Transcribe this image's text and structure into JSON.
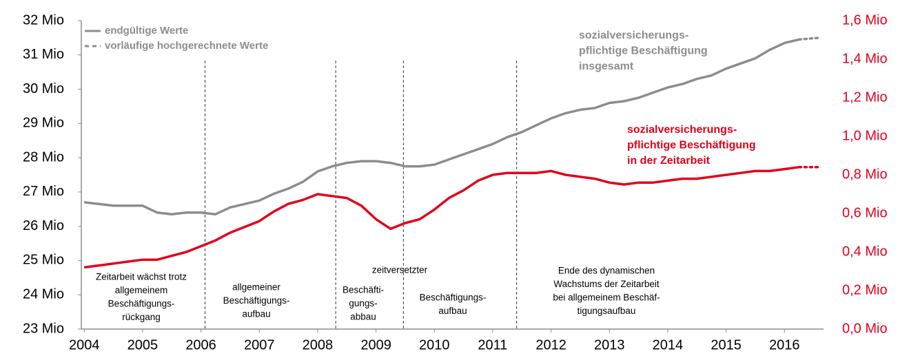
{
  "chart_data": {
    "type": "line",
    "legend": [
      {
        "name": "endgültige Werte",
        "dashed": false
      },
      {
        "name": "vorläufige hochgerechnete Werte",
        "dashed": true
      }
    ],
    "legend_color": "#8c8c8c",
    "x": [
      2004,
      2004.25,
      2004.5,
      2004.75,
      2005,
      2005.25,
      2005.5,
      2005.75,
      2006,
      2006.25,
      2006.5,
      2006.75,
      2007,
      2007.25,
      2007.5,
      2007.75,
      2008,
      2008.25,
      2008.5,
      2008.75,
      2009,
      2009.25,
      2009.5,
      2009.75,
      2010,
      2010.25,
      2010.5,
      2010.75,
      2011,
      2011.25,
      2011.5,
      2011.75,
      2012,
      2012.25,
      2012.5,
      2012.75,
      2013,
      2013.25,
      2013.5,
      2013.75,
      2014,
      2014.25,
      2014.5,
      2014.75,
      2015,
      2015.25,
      2015.5,
      2015.75,
      2016,
      2016.25
    ],
    "series": [
      {
        "color": "#8c8c8c",
        "axis": "y",
        "dashed": false,
        "values": [
          26.7,
          26.65,
          26.6,
          26.6,
          26.6,
          26.4,
          26.35,
          26.4,
          26.4,
          26.35,
          26.55,
          26.65,
          26.75,
          26.95,
          27.1,
          27.3,
          27.6,
          27.75,
          27.85,
          27.9,
          27.9,
          27.85,
          27.75,
          27.75,
          27.8,
          27.95,
          28.1,
          28.25,
          28.4,
          28.6,
          28.75,
          28.95,
          29.15,
          29.3,
          29.4,
          29.45,
          29.6,
          29.65,
          29.75,
          29.9,
          30.05,
          30.15,
          30.3,
          30.4,
          30.6,
          30.75,
          30.9,
          31.15,
          31.35,
          31.45
        ]
      },
      {
        "color": "#e2001a",
        "axis": "y2",
        "dashed": false,
        "values": [
          0.32,
          0.33,
          0.34,
          0.35,
          0.36,
          0.36,
          0.38,
          0.4,
          0.43,
          0.46,
          0.5,
          0.53,
          0.56,
          0.61,
          0.65,
          0.67,
          0.7,
          0.69,
          0.68,
          0.64,
          0.57,
          0.52,
          0.55,
          0.57,
          0.62,
          0.68,
          0.72,
          0.77,
          0.8,
          0.81,
          0.81,
          0.81,
          0.82,
          0.8,
          0.79,
          0.78,
          0.76,
          0.75,
          0.76,
          0.76,
          0.77,
          0.78,
          0.78,
          0.79,
          0.8,
          0.81,
          0.82,
          0.82,
          0.83,
          0.84
        ]
      },
      {
        "color": "#8c8c8c",
        "axis": "y",
        "dashed": true,
        "x": [
          2016.25,
          2016.45,
          2016.6
        ],
        "values": [
          31.45,
          31.48,
          31.5
        ]
      },
      {
        "color": "#e2001a",
        "axis": "y2",
        "dashed": true,
        "x": [
          2016.25,
          2016.45,
          2016.6
        ],
        "values": [
          0.84,
          0.84,
          0.84
        ]
      }
    ],
    "xlim": [
      2003.95,
      2016.67
    ],
    "xticks": [
      2004,
      2005,
      2006,
      2007,
      2008,
      2009,
      2010,
      2011,
      2012,
      2013,
      2014,
      2015,
      2016
    ],
    "ylim": [
      23,
      32
    ],
    "yticks": [
      {
        "value": 23,
        "label": "23 Mio"
      },
      {
        "value": 24,
        "label": "24 Mio"
      },
      {
        "value": 25,
        "label": "25 Mio"
      },
      {
        "value": 26,
        "label": "26 Mio"
      },
      {
        "value": 27,
        "label": "27 Mio"
      },
      {
        "value": 28,
        "label": "28 Mio"
      },
      {
        "value": 29,
        "label": "29 Mio"
      },
      {
        "value": 30,
        "label": "30 Mio"
      },
      {
        "value": 31,
        "label": "31 Mio"
      },
      {
        "value": 32,
        "label": "32 Mio"
      }
    ],
    "y2lim": [
      0,
      1.6
    ],
    "y2ticks": [
      {
        "value": 0,
        "label": "0,0 Mio"
      },
      {
        "value": 0.2,
        "label": "0,2 Mio"
      },
      {
        "value": 0.4,
        "label": "0,4 Mio"
      },
      {
        "value": 0.6,
        "label": "0,6 Mio"
      },
      {
        "value": 0.8,
        "label": "0,8 Mio"
      },
      {
        "value": 1.0,
        "label": "1,0 Mio"
      },
      {
        "value": 1.2,
        "label": "1,2 Mio"
      },
      {
        "value": 1.4,
        "label": "1,4 Mio"
      },
      {
        "value": 1.6,
        "label": "1,6 Mio"
      }
    ],
    "y2_color": "#e2001a",
    "dividers": [
      2006.07,
      2008.31,
      2009.47,
      2011.41
    ],
    "series_labels": [
      {
        "color": "#8c8c8c",
        "lines": [
          "sozialversicherungs-",
          "pflichtige Beschäftigung",
          "insgesamt"
        ]
      },
      {
        "color": "#e2001a",
        "lines": [
          "sozialversicherungs-",
          "pflichtige Beschäftigung",
          "in der Zeitarbeit"
        ]
      }
    ],
    "periods": [
      [
        "Zeitarbeit wächst trotz",
        "allgemeinem",
        "Beschäftigungs-",
        "rückgang"
      ],
      [
        "allgemeiner",
        "Beschäftigungs-",
        "aufbau"
      ],
      [
        "Beschäfti-",
        "gungs-",
        "abbau"
      ],
      [
        "Beschäftigungs-",
        "aufbau"
      ],
      [
        "Ende des dynamischen",
        "Wachstums der Zeitarbeit",
        "bei allgemeinem Beschäf-",
        "tigungsaufbau"
      ]
    ],
    "period_note": "zeitversetzter"
  }
}
